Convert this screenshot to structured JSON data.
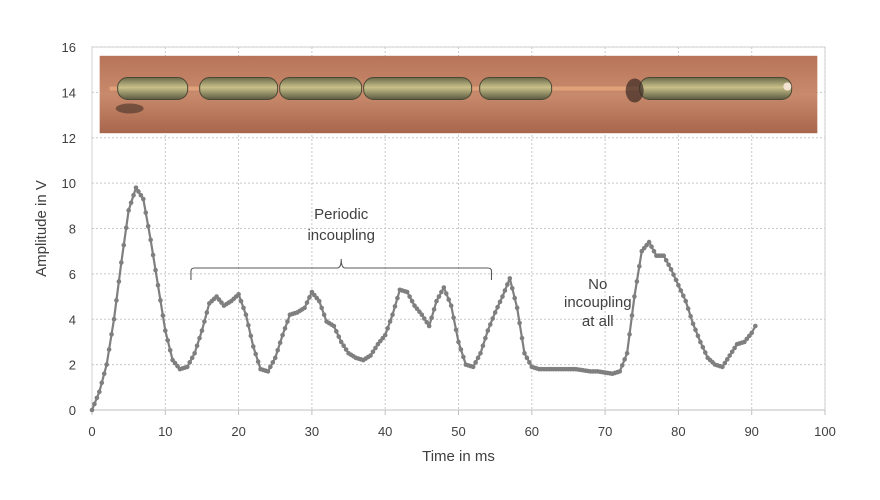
{
  "chart_data": {
    "type": "scatter",
    "title": "",
    "xlabel": "Time in ms",
    "ylabel": "Amplitude in V",
    "xlim": [
      0,
      100
    ],
    "ylim": [
      0,
      16
    ],
    "xticks": [
      0,
      10,
      20,
      30,
      40,
      50,
      60,
      70,
      80,
      90,
      100
    ],
    "yticks": [
      0,
      2,
      4,
      6,
      8,
      10,
      12,
      14,
      16
    ],
    "grid": "dotted",
    "marker_color": "#7f7f7f",
    "series": [
      {
        "name": "",
        "x": [
          0,
          1,
          2,
          3,
          4,
          5,
          6,
          7,
          8,
          9,
          10,
          11,
          12,
          13,
          14,
          15,
          16,
          17,
          18,
          19,
          20,
          21,
          22,
          23,
          24,
          25,
          26,
          27,
          28,
          29,
          30,
          31,
          32,
          33,
          34,
          35,
          36,
          37,
          38,
          39,
          40,
          41,
          42,
          43,
          44,
          45,
          46,
          47,
          48,
          49,
          50,
          51,
          52,
          53,
          54,
          55,
          56,
          57,
          58,
          59,
          60,
          61,
          62,
          63,
          64,
          65,
          66,
          67,
          68,
          69,
          70,
          71,
          72,
          73,
          74,
          75,
          76,
          77,
          78,
          79,
          80,
          81,
          82,
          83,
          84,
          85,
          86,
          87,
          88,
          89,
          90,
          90.5
        ],
        "y": [
          0,
          0.8,
          2.0,
          4.0,
          6.5,
          8.8,
          9.8,
          9.3,
          7.5,
          5.5,
          3.5,
          2.2,
          1.8,
          1.9,
          2.5,
          3.5,
          4.7,
          5.0,
          4.6,
          4.8,
          5.1,
          4.2,
          2.8,
          1.8,
          1.7,
          2.3,
          3.3,
          4.2,
          4.3,
          4.5,
          5.2,
          4.8,
          3.9,
          3.7,
          3.0,
          2.5,
          2.3,
          2.2,
          2.4,
          2.9,
          3.3,
          4.2,
          5.3,
          5.2,
          4.6,
          4.2,
          3.7,
          4.8,
          5.4,
          4.6,
          3.0,
          2.0,
          1.9,
          2.5,
          3.5,
          4.3,
          5.0,
          5.8,
          4.5,
          2.5,
          1.9,
          1.8,
          1.8,
          1.8,
          1.8,
          1.8,
          1.8,
          1.75,
          1.7,
          1.7,
          1.65,
          1.6,
          1.7,
          2.5,
          5.0,
          7.0,
          7.4,
          6.8,
          6.8,
          6.2,
          5.5,
          4.8,
          3.8,
          3.0,
          2.3,
          2.0,
          1.9,
          2.4,
          2.9,
          3.0,
          3.4,
          3.7
        ]
      }
    ],
    "annotations": [
      {
        "lines": [
          "Periodic",
          "incoupling"
        ],
        "x_range": [
          13.5,
          54.5
        ]
      },
      {
        "lines": [
          "No",
          "incoupling",
          "at all"
        ],
        "x": 69
      }
    ],
    "inset_photo": {
      "description_hidden": true,
      "x_range": [
        0.5,
        99.5
      ],
      "y_range": [
        12.2,
        15.7
      ]
    }
  }
}
